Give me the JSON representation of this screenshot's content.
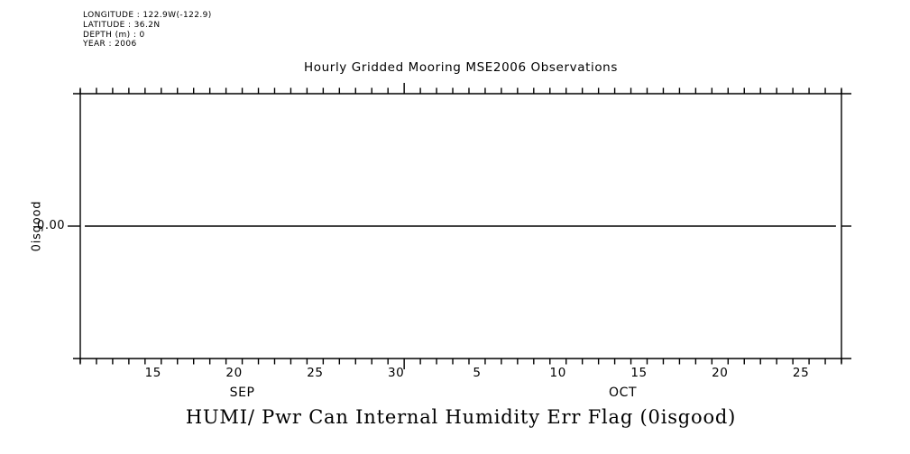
{
  "chart_data": {
    "type": "line",
    "title": "Hourly Gridded Mooring MSE2006 Observations",
    "bottom_title": "HUMI/ Pwr Can Internal Humidity Err Flag (0isgood)",
    "ylabel": "0isgood",
    "metadata_lines": [
      "LONGITUDE : 122.9W(-122.9)",
      "LATITUDE : 36.2N",
      "DEPTH (m) : 0",
      "YEAR : 2006"
    ],
    "foreground_color": "#000000",
    "background_color": "#ffffff",
    "grid": false,
    "legend": false,
    "x_axis": {
      "kind": "time",
      "start": "2006-09-11",
      "end": "2006-10-28",
      "total_days": 47,
      "minor_tick_interval_days": 1,
      "month_boundary_days": [
        20
      ],
      "day_tick_labels": [
        {
          "text": "15",
          "day": 4.5
        },
        {
          "text": "20",
          "day": 9.5
        },
        {
          "text": "25",
          "day": 14.5
        },
        {
          "text": "30",
          "day": 19.5
        },
        {
          "text": "5",
          "day": 24.5
        },
        {
          "text": "10",
          "day": 29.5
        },
        {
          "text": "15",
          "day": 34.5
        },
        {
          "text": "20",
          "day": 39.5
        },
        {
          "text": "25",
          "day": 44.5
        }
      ],
      "month_labels": [
        {
          "text": "SEP",
          "day": 10
        },
        {
          "text": "OCT",
          "day": 33.5
        }
      ]
    },
    "y_axis": {
      "tick_labels": [
        {
          "text": "0.00",
          "frac": 0.5,
          "value": 0
        }
      ]
    },
    "series": [
      {
        "name": "HUMI/ Pwr Can Internal Humidity Err Flag (0isgood)",
        "constant_value": 0.0,
        "start_day": 0.28,
        "end_day": 46.66
      }
    ]
  }
}
